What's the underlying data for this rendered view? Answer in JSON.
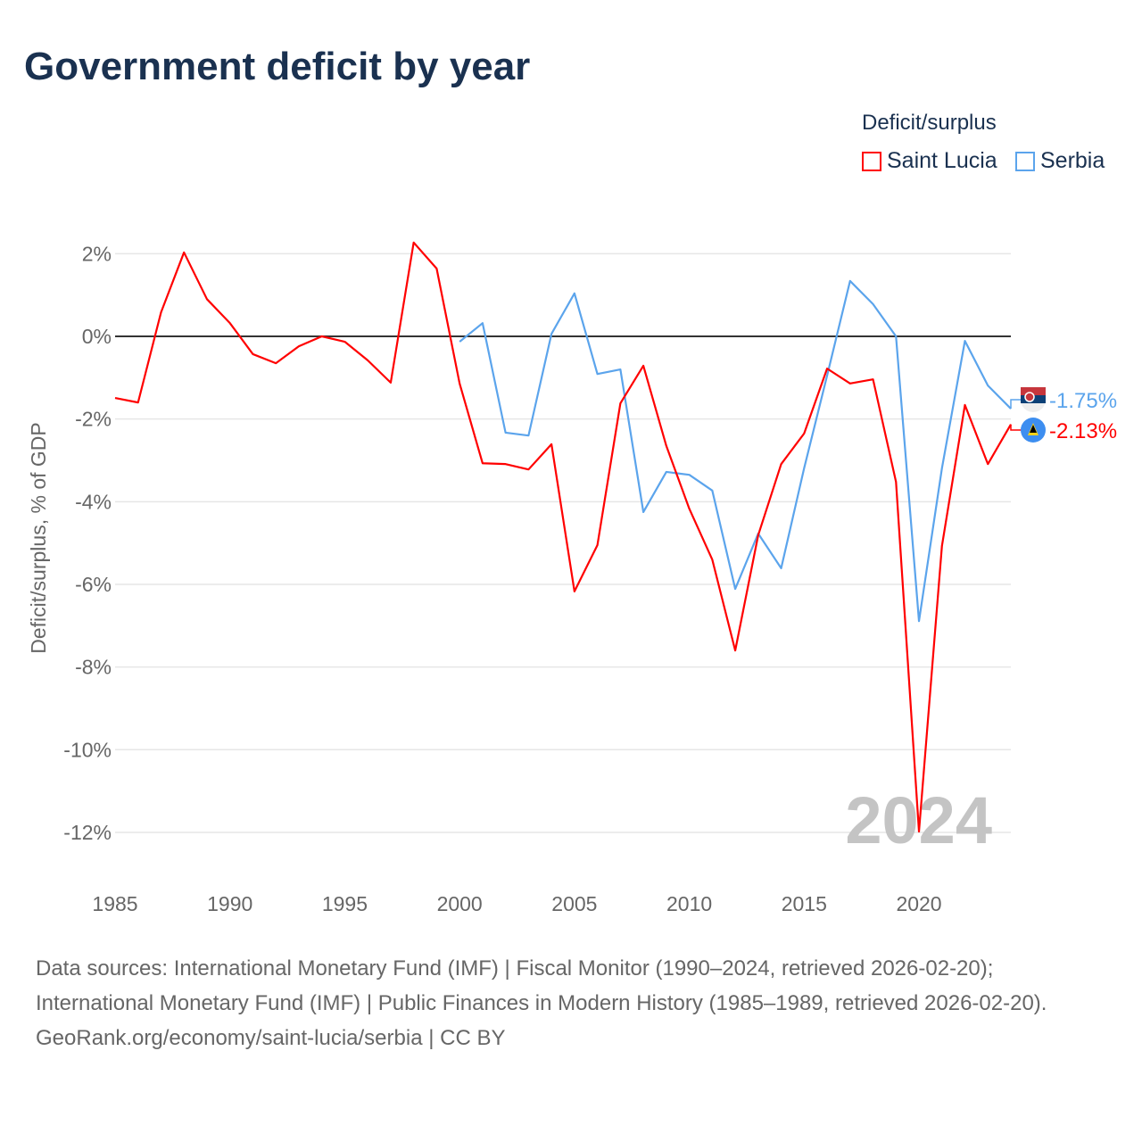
{
  "chart_data": {
    "type": "line",
    "title": "Government deficit by year",
    "legend_title": "Deficit/surplus",
    "legend_position": "top-right",
    "ylabel": "Deficit/surplus, % of GDP",
    "xlabel": "",
    "ylim": [
      -12,
      2
    ],
    "xlim": [
      1985,
      2024
    ],
    "yticks": [
      2,
      0,
      -2,
      -4,
      -6,
      -8,
      -10,
      -12
    ],
    "ytick_labels": [
      "2%",
      "0%",
      "-2%",
      "-4%",
      "-6%",
      "-8%",
      "-10%",
      "-12%"
    ],
    "xticks": [
      1985,
      1990,
      1995,
      2000,
      2005,
      2010,
      2015,
      2020
    ],
    "xtick_labels": [
      "1985",
      "1990",
      "1995",
      "2000",
      "2005",
      "2010",
      "2015",
      "2020"
    ],
    "year_watermark": "2024",
    "series": [
      {
        "name": "Saint Lucia",
        "color": "#ff0000",
        "end_label": "-2.13%",
        "icon": "saint-lucia-flag-icon",
        "x": [
          1985,
          1986,
          1987,
          1988,
          1989,
          1990,
          1991,
          1992,
          1993,
          1994,
          1995,
          1996,
          1997,
          1998,
          1999,
          2000,
          2001,
          2002,
          2003,
          2004,
          2005,
          2006,
          2007,
          2008,
          2009,
          2010,
          2011,
          2012,
          2013,
          2014,
          2015,
          2016,
          2017,
          2018,
          2019,
          2020,
          2021,
          2022,
          2023,
          2024
        ],
        "values": [
          -1.49,
          -1.6,
          0.58,
          2.03,
          0.9,
          0.32,
          -0.43,
          -0.65,
          -0.24,
          0,
          -0.13,
          -0.58,
          -1.12,
          2.27,
          1.64,
          -1.14,
          -3.07,
          -3.09,
          -3.22,
          -2.61,
          -6.17,
          -5.05,
          -1.62,
          -0.71,
          -2.65,
          -4.17,
          -5.4,
          -7.6,
          -4.81,
          -3.09,
          -2.35,
          -0.78,
          -1.14,
          -1.04,
          -3.52,
          -11.98,
          -5.07,
          -1.66,
          -3.09,
          -2.13
        ]
      },
      {
        "name": "Serbia",
        "color": "#5ba4ec",
        "end_label": "-1.75%",
        "icon": "serbia-flag-icon",
        "x": [
          2000,
          2001,
          2002,
          2003,
          2004,
          2005,
          2006,
          2007,
          2008,
          2009,
          2010,
          2011,
          2012,
          2013,
          2014,
          2015,
          2016,
          2017,
          2018,
          2019,
          2020,
          2021,
          2022,
          2023,
          2024
        ],
        "values": [
          -0.13,
          0.32,
          -2.33,
          -2.4,
          0.06,
          1.04,
          -0.91,
          -0.8,
          -4.25,
          -3.28,
          -3.35,
          -3.73,
          -6.11,
          -4.77,
          -5.61,
          -3.19,
          -0.95,
          1.34,
          0.78,
          0,
          -6.89,
          -3.19,
          -0.11,
          -1.19,
          -1.75
        ]
      }
    ]
  },
  "footer": {
    "sources": "Data sources: International Monetary Fund (IMF) | Fiscal Monitor (1990–2024, retrieved 2026-02-20); International Monetary Fund (IMF) | Public Finances in Modern History (1985–1989, retrieved 2026-02-20).",
    "credit": "GeoRank.org/economy/saint-lucia/serbia | CC BY"
  }
}
